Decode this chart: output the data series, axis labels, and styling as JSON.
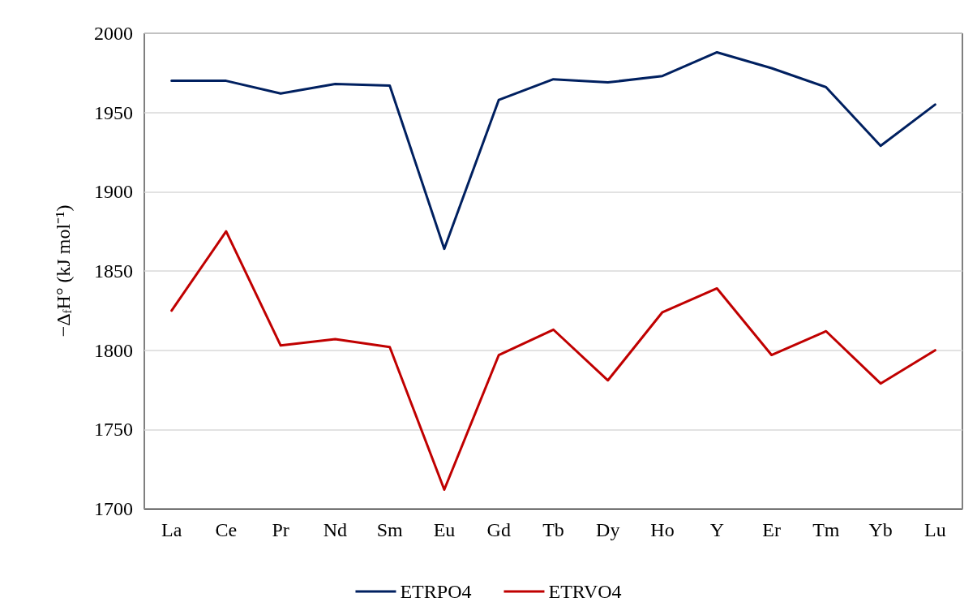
{
  "chart_data": {
    "type": "line",
    "ylabel": "−Δ$_{f}$H° (kJ mol⁻¹)",
    "categories": [
      "La",
      "Ce",
      "Pr",
      "Nd",
      "Sm",
      "Eu",
      "Gd",
      "Tb",
      "Dy",
      "Ho",
      "Y",
      "Er",
      "Tm",
      "Yb",
      "Lu"
    ],
    "series": [
      {
        "name": "ETRPO4",
        "color": "#002060",
        "values": [
          1970,
          1970,
          1962,
          1968,
          1967,
          1864,
          1958,
          1971,
          1969,
          1973,
          1988,
          1978,
          1966,
          1929,
          1955
        ]
      },
      {
        "name": "ETRVO4",
        "color": "#c00000",
        "values": [
          1825,
          1875,
          1803,
          1807,
          1802,
          1712,
          1797,
          1813,
          1781,
          1824,
          1839,
          1797,
          1812,
          1779,
          1800
        ]
      }
    ],
    "ylim": [
      1700,
      2000
    ],
    "yticks": [
      1700,
      1750,
      1800,
      1850,
      1900,
      1950,
      2000
    ],
    "grid": "y",
    "legend": "bottom",
    "marker": "none",
    "line_style": "solid"
  }
}
